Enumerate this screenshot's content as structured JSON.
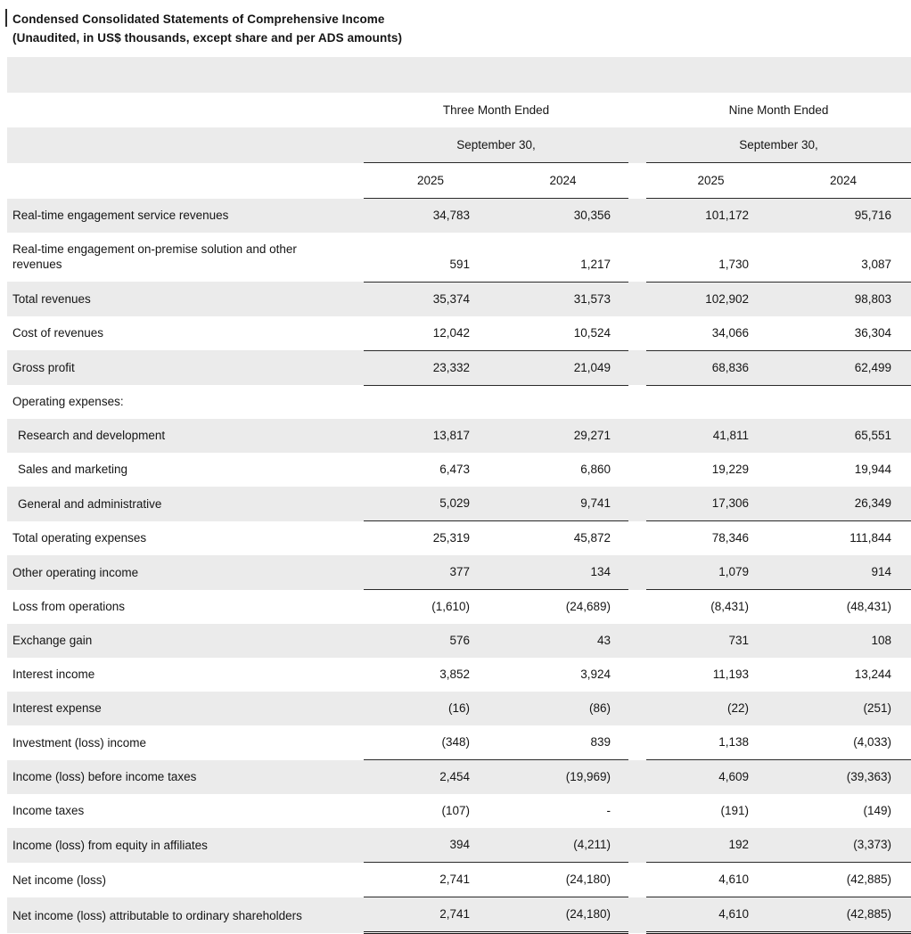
{
  "title": "Condensed Consolidated Statements of Comprehensive Income",
  "subtitle": "(Unaudited, in US$ thousands, except share and per ADS amounts)",
  "colors": {
    "stripe": "#ebebeb",
    "rule": "#2a2a2a",
    "text": "#151515"
  },
  "table": {
    "column_groups": [
      {
        "title": "Three Month Ended",
        "subtitle": "September 30,",
        "years": [
          "2025",
          "2024"
        ]
      },
      {
        "title": "Nine Month Ended",
        "subtitle": "September 30,",
        "years": [
          "2025",
          "2024"
        ]
      }
    ],
    "rows": [
      {
        "label": "Real-time engagement service revenues",
        "values": [
          "34,783",
          "30,356",
          "101,172",
          "95,716"
        ]
      },
      {
        "label": "Real-time engagement on-premise solution and other revenues",
        "values": [
          "591",
          "1,217",
          "1,730",
          "3,087"
        ],
        "rule_below": true
      },
      {
        "label": "Total revenues",
        "values": [
          "35,374",
          "31,573",
          "102,902",
          "98,803"
        ]
      },
      {
        "label": "Cost of revenues",
        "values": [
          "12,042",
          "10,524",
          "34,066",
          "36,304"
        ],
        "rule_below": true
      },
      {
        "label": "Gross profit",
        "values": [
          "23,332",
          "21,049",
          "68,836",
          "62,499"
        ],
        "rule_below": true
      },
      {
        "label": "Operating expenses:",
        "values": [
          "",
          "",
          "",
          ""
        ]
      },
      {
        "label": "Research and development",
        "indent": true,
        "values": [
          "13,817",
          "29,271",
          "41,811",
          "65,551"
        ]
      },
      {
        "label": "Sales and marketing",
        "indent": true,
        "values": [
          "6,473",
          "6,860",
          "19,229",
          "19,944"
        ]
      },
      {
        "label": "General and administrative",
        "indent": true,
        "values": [
          "5,029",
          "9,741",
          "17,306",
          "26,349"
        ],
        "rule_below": true
      },
      {
        "label": "Total operating expenses",
        "values": [
          "25,319",
          "45,872",
          "78,346",
          "111,844"
        ]
      },
      {
        "label": "Other operating income",
        "values": [
          "377",
          "134",
          "1,079",
          "914"
        ],
        "rule_below": true
      },
      {
        "label": "Loss from operations",
        "values": [
          "(1,610)",
          "(24,689)",
          "(8,431)",
          "(48,431)"
        ]
      },
      {
        "label": "Exchange gain",
        "values": [
          "576",
          "43",
          "731",
          "108"
        ]
      },
      {
        "label": "Interest income",
        "values": [
          "3,852",
          "3,924",
          "11,193",
          "13,244"
        ]
      },
      {
        "label": "Interest expense",
        "values": [
          "(16)",
          "(86)",
          "(22)",
          "(251)"
        ]
      },
      {
        "label": "Investment (loss) income",
        "values": [
          "(348)",
          "839",
          "1,138",
          "(4,033)"
        ],
        "rule_below": true
      },
      {
        "label": "Income (loss) before income taxes",
        "values": [
          "2,454",
          "(19,969)",
          "4,609",
          "(39,363)"
        ]
      },
      {
        "label": "Income taxes",
        "values": [
          "(107)",
          "-",
          "(191)",
          "(149)"
        ]
      },
      {
        "label": "Income (loss) from equity in affiliates",
        "values": [
          "394",
          "(4,211)",
          "192",
          "(3,373)"
        ],
        "rule_below": true
      },
      {
        "label": "Net income (loss)",
        "values": [
          "2,741",
          "(24,180)",
          "4,610",
          "(42,885)"
        ],
        "rule_below": true
      },
      {
        "label": "Net income (loss) attributable to ordinary shareholders",
        "values": [
          "2,741",
          "(24,180)",
          "4,610",
          "(42,885)"
        ],
        "double_rule_below": true
      }
    ]
  }
}
